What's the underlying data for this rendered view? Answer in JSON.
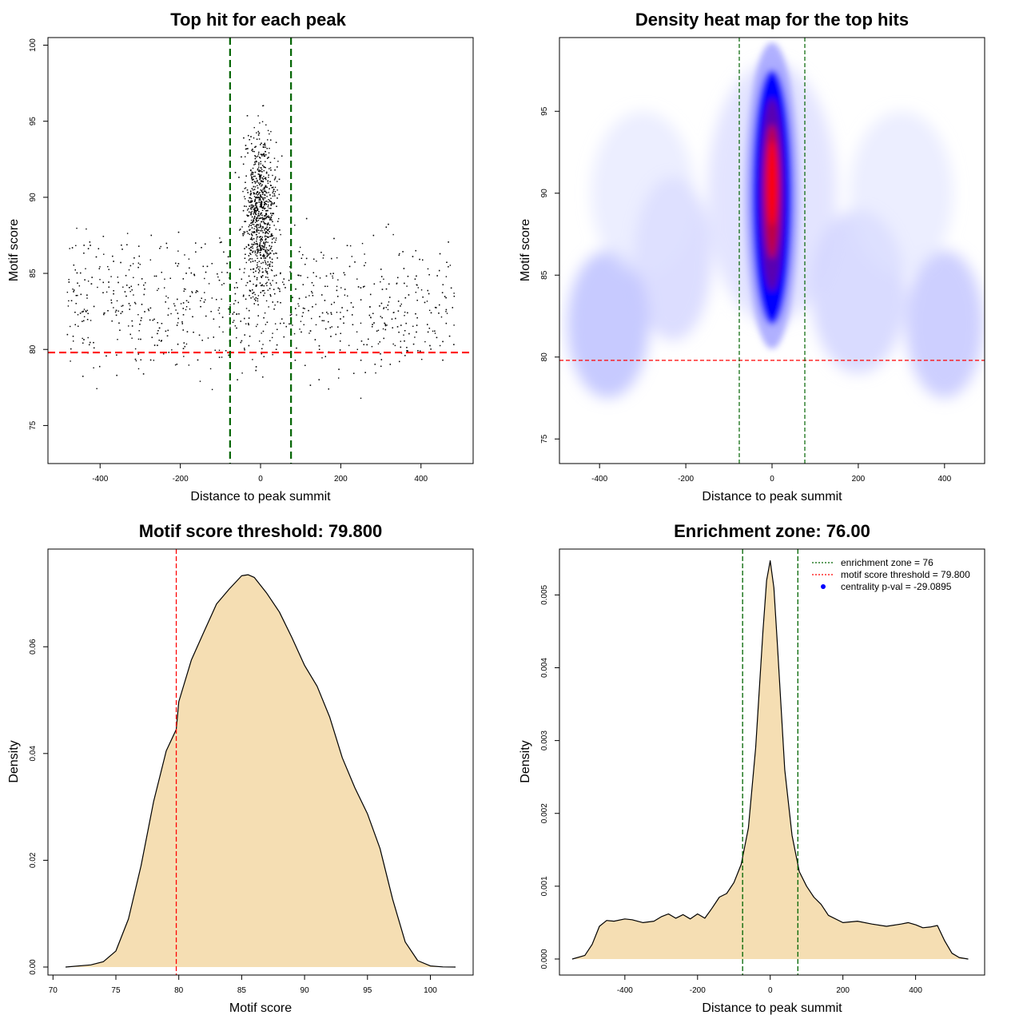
{
  "chart_data": [
    {
      "type": "scatter",
      "title": "Top hit for each peak",
      "xlabel": "Distance to peak summit",
      "ylabel": "Motif score",
      "xlim": [
        -530,
        530
      ],
      "ylim": [
        72.5,
        100.5
      ],
      "xticks": [
        -400,
        -200,
        0,
        200,
        400
      ],
      "yticks": [
        75,
        80,
        85,
        90,
        95,
        100
      ],
      "description_of_points": "about 3500 points; dense column near x=0 from score 78 to 99, background scatter from x=-480 to 480 between scores 74 and 93",
      "hlines": [
        {
          "y": 79.8,
          "color": "#ff0000",
          "style": "dashed"
        }
      ],
      "vlines": [
        {
          "x": -76,
          "color": "#006400",
          "style": "dashed"
        },
        {
          "x": 76,
          "color": "#006400",
          "style": "dashed"
        }
      ],
      "grid": false
    },
    {
      "type": "heatmap",
      "title": "Density heat map for the top hits",
      "xlabel": "Distance to peak summit",
      "ylabel": "Motif score",
      "xlim": [
        -493,
        493
      ],
      "ylim": [
        73.5,
        99.5
      ],
      "xticks": [
        -400,
        -200,
        0,
        200,
        400
      ],
      "yticks": [
        75,
        80,
        85,
        90,
        95
      ],
      "colors": [
        "#ffffff",
        "#0000ff",
        "#ff0000"
      ],
      "peak": {
        "x": 0,
        "y": 91
      },
      "hlines": [
        {
          "y": 79.8,
          "color": "#ff0000",
          "style": "dashed"
        }
      ],
      "vlines": [
        {
          "x": -76,
          "color": "#006400",
          "style": "dashed"
        },
        {
          "x": 76,
          "color": "#006400",
          "style": "dashed"
        }
      ],
      "grid": false
    },
    {
      "type": "area",
      "title": "Motif score threshold: 79.800",
      "xlabel": "Motif score",
      "ylabel": "Density",
      "xlim": [
        69.6,
        103.4
      ],
      "ylim": [
        -0.0015,
        0.0783
      ],
      "xticks": [
        70,
        75,
        80,
        85,
        90,
        95,
        100
      ],
      "yticks": [
        0.0,
        0.02,
        0.04,
        0.06
      ],
      "ytick_labels": [
        "0.00",
        "0.02",
        "0.04",
        "0.06"
      ],
      "fill_color": "#f5deb3",
      "x": [
        71,
        73,
        74,
        75,
        76,
        77,
        78,
        79,
        79.8,
        80,
        81,
        82,
        83,
        84,
        85,
        85.5,
        86,
        87,
        88,
        89,
        90,
        91,
        92,
        93,
        94,
        95,
        96,
        97,
        98,
        99,
        100,
        101,
        102
      ],
      "y": [
        0.0,
        0.0004,
        0.001,
        0.003,
        0.009,
        0.019,
        0.031,
        0.0405,
        0.0445,
        0.0497,
        0.0575,
        0.0628,
        0.068,
        0.0708,
        0.0733,
        0.0735,
        0.073,
        0.07,
        0.0665,
        0.0617,
        0.0565,
        0.0526,
        0.0468,
        0.0392,
        0.0336,
        0.0287,
        0.0222,
        0.0127,
        0.0047,
        0.0012,
        0.0002,
        3e-05,
        0.0
      ],
      "vlines": [
        {
          "x": 79.8,
          "color": "#ff0000",
          "style": "dashed"
        }
      ],
      "grid": false
    },
    {
      "type": "area",
      "title": "Enrichment zone: 76.00",
      "xlabel": "Distance to peak summit",
      "ylabel": "Density",
      "xlim": [
        -580,
        590
      ],
      "ylim": [
        -0.00022,
        0.00563
      ],
      "xticks": [
        -400,
        -200,
        0,
        200,
        400
      ],
      "yticks": [
        0.0,
        0.001,
        0.002,
        0.003,
        0.004,
        0.005
      ],
      "ytick_labels": [
        "0.000",
        "0.001",
        "0.002",
        "0.003",
        "0.004",
        "0.005"
      ],
      "fill_color": "#f5deb3",
      "x": [
        -545,
        -510,
        -490,
        -470,
        -450,
        -430,
        -400,
        -380,
        -350,
        -320,
        -300,
        -280,
        -260,
        -240,
        -220,
        -200,
        -180,
        -160,
        -140,
        -120,
        -100,
        -80,
        -60,
        -40,
        -20,
        -10,
        0,
        10,
        20,
        40,
        60,
        80,
        100,
        120,
        140,
        160,
        200,
        240,
        280,
        320,
        360,
        380,
        400,
        420,
        440,
        460,
        480,
        500,
        520,
        545
      ],
      "y": [
        0.0,
        5e-05,
        0.0002,
        0.00045,
        0.00053,
        0.00052,
        0.00055,
        0.00054,
        0.0005,
        0.00052,
        0.00058,
        0.00062,
        0.00056,
        0.00061,
        0.00055,
        0.00062,
        0.00056,
        0.0007,
        0.00085,
        0.0009,
        0.00105,
        0.0013,
        0.0018,
        0.0029,
        0.0045,
        0.0052,
        0.00547,
        0.0051,
        0.0043,
        0.0026,
        0.0017,
        0.0012,
        0.001,
        0.00085,
        0.00075,
        0.0006,
        0.0005,
        0.00052,
        0.00048,
        0.00045,
        0.00048,
        0.0005,
        0.00047,
        0.00043,
        0.00044,
        0.00046,
        0.00025,
        8e-05,
        2e-05,
        0.0
      ],
      "vlines": [
        {
          "x": -76,
          "color": "#006400",
          "style": "dashed"
        },
        {
          "x": 76,
          "color": "#006400",
          "style": "dashed"
        }
      ],
      "legend": {
        "position": "top-right",
        "entries": [
          {
            "label": "enrichment zone = 76",
            "color": "#006400",
            "kind": "dotted-line"
          },
          {
            "label": "motif score threshold = 79.800",
            "color": "#ff0000",
            "kind": "dotted-line"
          },
          {
            "label": "centrality p-val = -29.0895",
            "color": "#0000ff",
            "kind": "point"
          }
        ]
      },
      "grid": false
    }
  ]
}
